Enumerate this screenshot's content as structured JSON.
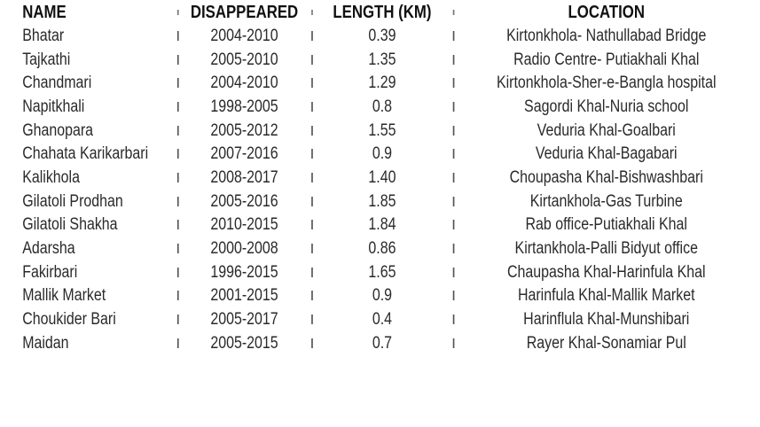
{
  "table": {
    "headers": {
      "name": "NAME",
      "disappeared": "DISAPPEARED",
      "length": "LENGTH (KM)",
      "location": "LOCATION"
    },
    "rows": [
      {
        "name": "Bhatar",
        "disappeared": "2004-2010",
        "length": "0.39",
        "location": "Kirtonkhola- Nathullabad Bridge"
      },
      {
        "name": "Tajkathi",
        "disappeared": "2005-2010",
        "length": "1.35",
        "location": "Radio Centre- Putiakhali Khal"
      },
      {
        "name": "Chandmari",
        "disappeared": "2004-2010",
        "length": "1.29",
        "location": "Kirtonkhola-Sher-e-Bangla hospital"
      },
      {
        "name": "Napitkhali",
        "disappeared": "1998-2005",
        "length": "0.8",
        "location": "Sagordi Khal-Nuria school"
      },
      {
        "name": "Ghanopara",
        "disappeared": "2005-2012",
        "length": "1.55",
        "location": "Veduria Khal-Goalbari"
      },
      {
        "name": "Chahata Karikarbari",
        "disappeared": "2007-2016",
        "length": "0.9",
        "location": "Veduria Khal-Bagabari"
      },
      {
        "name": "Kalikhola",
        "disappeared": "2008-2017",
        "length": "1.40",
        "location": "Choupasha Khal-Bishwashbari"
      },
      {
        "name": "Gilatoli Prodhan",
        "disappeared": "2005-2016",
        "length": "1.85",
        "location": "Kirtankhola-Gas Turbine"
      },
      {
        "name": "Gilatoli Shakha",
        "disappeared": "2010-2015",
        "length": "1.84",
        "location": "Rab office-Putiakhali Khal"
      },
      {
        "name": "Adarsha",
        "disappeared": "2000-2008",
        "length": "0.86",
        "location": "Kirtankhola-Palli Bidyut office"
      },
      {
        "name": "Fakirbari",
        "disappeared": "1996-2015",
        "length": "1.65",
        "location": "Chaupasha Khal-Harinfula Khal"
      },
      {
        "name": "Mallik Market",
        "disappeared": "2001-2015",
        "length": "0.9",
        "location": "Harinfula Khal-Mallik Market"
      },
      {
        "name": "Choukider Bari",
        "disappeared": "2005-2017",
        "length": "0.4",
        "location": "Harinflula Khal-Munshibari"
      },
      {
        "name": "Maidan",
        "disappeared": "2005-2015",
        "length": "0.7",
        "location": "Rayer Khal-Sonamiar Pul"
      }
    ]
  }
}
